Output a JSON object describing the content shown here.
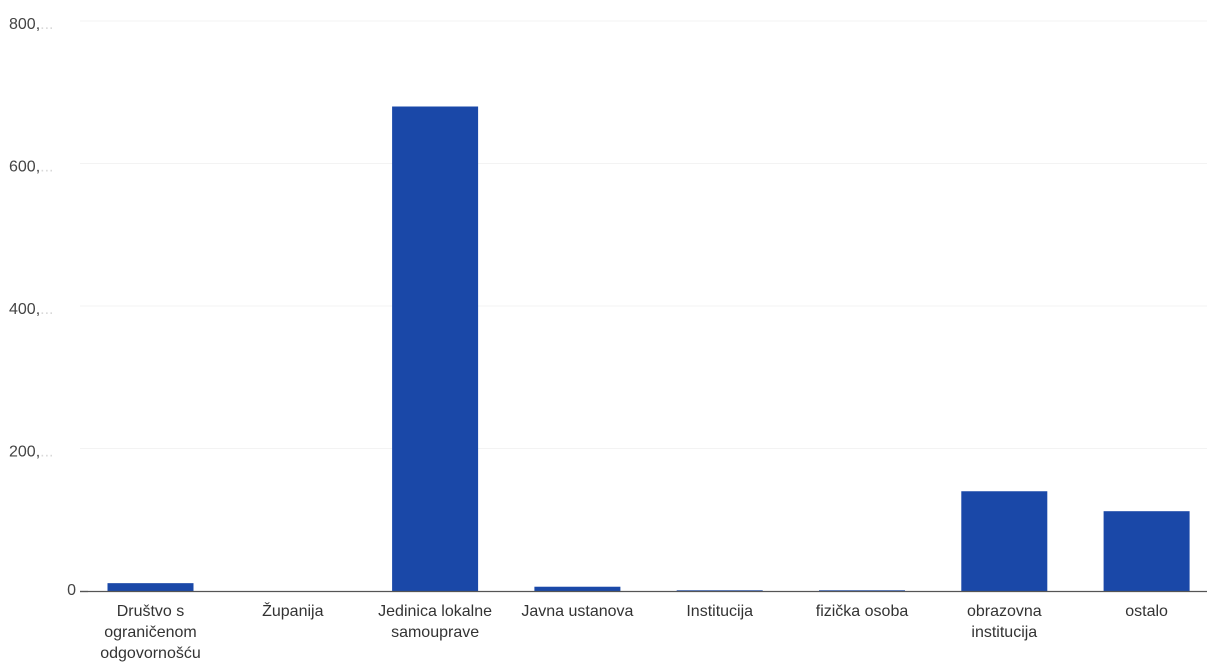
{
  "chart_data": {
    "type": "bar",
    "categories": [
      "Društvo s ograničenom odgovornošću",
      "Županija",
      "Jedinica lokalne samouprave",
      "Javna ustanova",
      "Institucija",
      "fizička osoba",
      "obrazovna institucija",
      "ostalo"
    ],
    "values": [
      11,
      0,
      680,
      6,
      1,
      1,
      140,
      112
    ],
    "ylim": [
      0,
      800
    ],
    "yticks": [
      0,
      200,
      400,
      600,
      800
    ],
    "ytick_labels": [
      "0",
      "200,",
      "400,",
      "600,",
      "800,"
    ],
    "ytick_suffix": "...",
    "title": "",
    "xlabel": "",
    "ylabel": "",
    "grid": true,
    "legend": "none",
    "bar_color": "#1a48a8"
  }
}
